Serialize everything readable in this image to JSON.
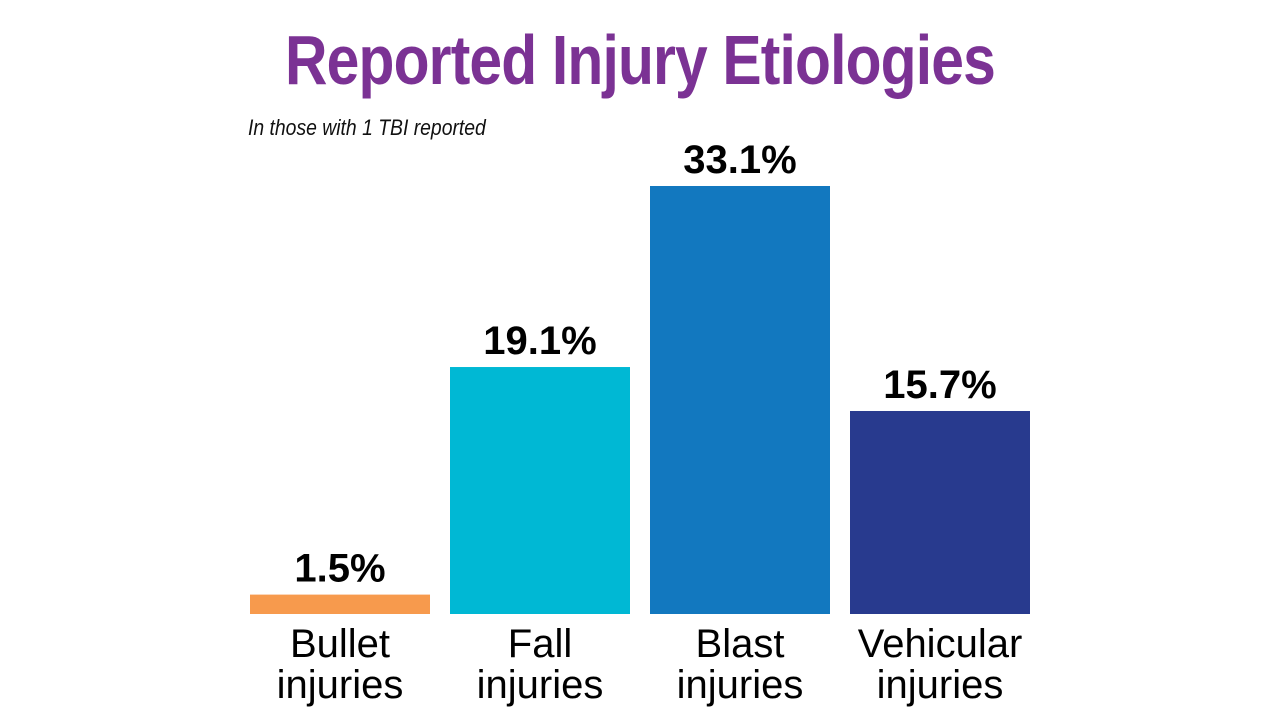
{
  "title": "Reported Injury Etiologies",
  "subtitle": "In those with 1 TBI reported",
  "chart_data": {
    "type": "bar",
    "title": "Reported Injury Etiologies",
    "subtitle": "In those with 1 TBI reported",
    "categories": [
      [
        "Bullet",
        "injuries"
      ],
      [
        "Fall",
        "injuries"
      ],
      [
        "Blast",
        "injuries"
      ],
      [
        "Vehicular",
        "injuries"
      ]
    ],
    "values": [
      1.5,
      19.1,
      33.1,
      15.7
    ],
    "value_labels": [
      "1.5%",
      "19.1%",
      "33.1%",
      "15.7%"
    ],
    "colors": [
      "#f79a4d",
      "#00b8d4",
      "#1278bf",
      "#283a8e"
    ],
    "ylim": [
      0,
      33.1
    ],
    "grid": false,
    "legend": "none"
  }
}
